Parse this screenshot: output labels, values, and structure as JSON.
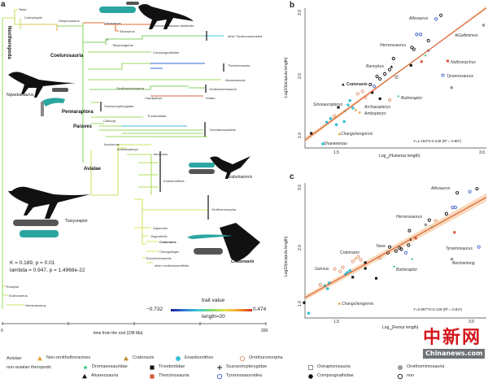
{
  "panel_a": {
    "letter": "a",
    "taxa": {
      "tawa": "Tawa",
      "coelophysis": "Coelophysis",
      "dilophosaurus": "Dilophosaurus",
      "limusaurus": "Limusaurus",
      "acrocanthosaurus": "Acrocanthosaurus atokensis",
      "allosaurus": "Allosaurus",
      "b_marker": "b",
      "tanycolagreus": "Tanycolagreus",
      "other_tyrannosauroidea": "other Tyrannosauroidea",
      "compsognathidae": "Compsognathidae",
      "therizinosauria": "Therizinosauria",
      "alvarezsauria": "Alvarezsauria",
      "ornithomimosauria_inner": "Ornithomimosauria",
      "ornithomimosauria": "Ornithomimosauria",
      "caudipteryx": "Caudipteryx",
      "khaan": "Khaan",
      "scansoriopterygidae": "Scansoriopterygidae",
      "troodontidae": "Troodontidae",
      "caihong": "Caihong",
      "dromaeosauridae": "Dromaeosauridae",
      "anchiornis": "Anchiornis",
      "archaeopteryx": "Archaeopteryx",
      "jeholornis": "Jeholornis",
      "enantiornithes": "Enantiornithes",
      "ornithuromorpha": "Ornithuromorpha",
      "sapeornis": "Sapeornis",
      "jinguofortis": "Jinguofortis",
      "cratonavis": "Cratonavis",
      "chongmingia": "Chongmingia",
      "eoconfuciusornis": "Eoconfuciusornis",
      "other_confuciusornithids": "other confuciusornithids",
      "eoraptor": "Eoraptor",
      "eodromaeus": "Eodromaeus",
      "herrerasaurus": "Herrerasaurus"
    },
    "clades": {
      "neotheropoda": "Neotheropoda",
      "coelurosauria": "Coelurosauria",
      "pennaraptora": "Pennaraptora",
      "paraves": "Paraves",
      "avialae": "Avialae"
    },
    "silhouette_labels": {
      "nqwebasaurus": "Nqwebasaurus",
      "tianyuraptor": "Tianyuraptor",
      "parabohaiornis": "parabohaiornis",
      "cratonavis": "Cratonavis"
    },
    "stats": {
      "line1": "K = 0.189, p = 0.01",
      "line2": "lambda = 0.947, p = 1.4968e-22"
    },
    "colorbar": {
      "title": "trait value",
      "min": "−0.732",
      "max": "0.474",
      "length": "length=20",
      "colors": [
        "#1a1a9c",
        "#2c7bd6",
        "#3cc8d8",
        "#7ed86a",
        "#e8e04c",
        "#f0a030",
        "#d8301c"
      ]
    },
    "time_axis": {
      "label": "time from the root (238 Ma)",
      "tick_start": "0",
      "tick_end": "200"
    }
  },
  "panel_b": {
    "letter": "b",
    "xlabel_main": "Log",
    "xlabel_sub": "10",
    "xlabel_rest": "(Humerus length)",
    "ylabel": "Log10(scapula length)",
    "xticks": [
      "1.5",
      "3.0"
    ],
    "yticks": [
      "1.0",
      "2.0",
      "3.0"
    ],
    "equation": "Y=1.194*X-0.449  (R² = 0.80*)",
    "regression": {
      "slope": 1.194,
      "intercept": -0.449
    },
    "labels": {
      "allosaurus": "Allosaurus",
      "gallimimus": "Gallimimus",
      "herrerasaurus": "Herrerasaurus",
      "nothronychus": "Nothronychus",
      "bannykus": "Bannykus",
      "tyrannosaurus": "Tyrannosaurus",
      "cratonavis": "Cratonavis",
      "sinosauropteryx": "Sinosauropteryx",
      "buitreraptor": "Buitreraptor",
      "archaeopteryx": "Archaeopteryx",
      "ambopteryx": "Ambopteryx",
      "changchengornis": "Changchengornis",
      "shanweiniao": "Shanweiniao"
    }
  },
  "panel_c": {
    "letter": "c",
    "xlabel_main": "Log",
    "xlabel_sub": "10",
    "xlabel_rest": "(Femur length)",
    "ylabel": "Log10(scapula length)",
    "xticks": [
      "1.5",
      "3.0"
    ],
    "yticks": [
      "1.0",
      "2.0",
      "3.0"
    ],
    "equation": "Y=0.857*X+0.129  (R² = 0.84*)",
    "regression": {
      "slope": 0.857,
      "intercept": 0.129
    },
    "labels": {
      "allosaurus": "Allosaurus",
      "herrerasaurus": "Herrerasaurus",
      "tawa": "Tawa",
      "tyrannosaurus": "Tyrannosaurus",
      "beishanlong": "Beishanlong",
      "cratonavis": "Cratonavis",
      "gansus": "Gansus",
      "buitreraptor": "Buitreraptor",
      "changchengornis": "Changchengornis"
    }
  },
  "scatter_b": [
    [
      2.51,
      2.89,
      "tyr"
    ],
    [
      2.56,
      2.95,
      "non"
    ],
    [
      3.0,
      2.79,
      "orn"
    ],
    [
      2.72,
      2.63,
      "orn"
    ],
    [
      2.31,
      2.64,
      "tyr"
    ],
    [
      2.35,
      2.64,
      "tyr"
    ],
    [
      2.43,
      2.54,
      "non"
    ],
    [
      2.26,
      2.43,
      "non"
    ],
    [
      2.28,
      2.4,
      "non"
    ],
    [
      2.07,
      2.25,
      "non"
    ],
    [
      2.63,
      2.21,
      "ther"
    ],
    [
      2.58,
      1.98,
      "tyr"
    ],
    [
      2.67,
      1.78,
      "orn"
    ],
    [
      2.05,
      2.12,
      "alv"
    ],
    [
      1.55,
      1.83,
      "alv"
    ],
    [
      1.83,
      1.83,
      "non"
    ],
    [
      1.9,
      1.96,
      "non"
    ],
    [
      1.93,
      1.92,
      "non"
    ],
    [
      1.98,
      2.0,
      "non"
    ],
    [
      2.03,
      2.07,
      "non"
    ],
    [
      2.1,
      1.95,
      "ovi"
    ],
    [
      1.87,
      1.8,
      "tyr"
    ],
    [
      2.12,
      1.64,
      "dro"
    ],
    [
      2.25,
      2.14,
      "troo"
    ],
    [
      2.43,
      2.38,
      "orn"
    ],
    [
      2.4,
      2.3,
      "dro"
    ],
    [
      2.36,
      2.2,
      "ther"
    ],
    [
      1.75,
      1.72,
      "ornu"
    ],
    [
      1.7,
      1.68,
      "ornu"
    ],
    [
      1.78,
      1.62,
      "ornu"
    ],
    [
      1.85,
      1.7,
      "troo"
    ],
    [
      1.93,
      1.6,
      "troo"
    ],
    [
      1.62,
      1.57,
      "enan"
    ],
    [
      1.6,
      1.5,
      "enan"
    ],
    [
      1.65,
      1.45,
      "enan"
    ],
    [
      1.57,
      1.4,
      "dro"
    ],
    [
      1.68,
      1.42,
      "nonav"
    ],
    [
      1.72,
      1.38,
      "nonav"
    ],
    [
      1.5,
      1.46,
      "troo"
    ],
    [
      1.46,
      1.32,
      "ornu"
    ],
    [
      1.42,
      1.28,
      "enan"
    ],
    [
      1.38,
      1.22,
      "enan"
    ],
    [
      1.48,
      1.18,
      "enan"
    ],
    [
      1.56,
      1.23,
      "enan"
    ],
    [
      1.51,
      1.03,
      "nonav"
    ],
    [
      1.34,
      0.87,
      "enan"
    ],
    [
      1.22,
      1.04,
      "troo"
    ],
    [
      2.03,
      1.58,
      "ornu"
    ]
  ],
  "scatter_c": [
    [
      2.82,
      2.9,
      "non"
    ],
    [
      2.96,
      2.92,
      "tyr"
    ],
    [
      3.04,
      2.97,
      "non"
    ],
    [
      2.77,
      2.65,
      "tyr"
    ],
    [
      2.8,
      2.65,
      "tyr"
    ],
    [
      2.7,
      2.54,
      "non"
    ],
    [
      2.51,
      2.43,
      "non"
    ],
    [
      2.29,
      2.25,
      "non"
    ],
    [
      3.06,
      1.97,
      "tyr"
    ],
    [
      2.76,
      1.76,
      "orn"
    ],
    [
      2.79,
      2.22,
      "ther"
    ],
    [
      2.07,
      1.97,
      "non"
    ],
    [
      2.05,
      1.87,
      "non"
    ],
    [
      2.14,
      1.9,
      "non"
    ],
    [
      2.18,
      1.95,
      "non"
    ],
    [
      2.2,
      1.93,
      "non"
    ],
    [
      2.28,
      2.0,
      "non"
    ],
    [
      2.25,
      1.87,
      "tyr"
    ],
    [
      2.12,
      1.63,
      "dro"
    ],
    [
      2.3,
      2.1,
      "alv"
    ],
    [
      2.36,
      2.12,
      "ther"
    ],
    [
      2.47,
      2.35,
      "orn"
    ],
    [
      2.58,
      2.42,
      "ornu"
    ],
    [
      2.54,
      2.31,
      "dro"
    ],
    [
      1.69,
      1.77,
      "nonav"
    ],
    [
      1.72,
      1.8,
      "ornu"
    ],
    [
      1.75,
      1.75,
      "ornu"
    ],
    [
      1.66,
      1.72,
      "ornu"
    ],
    [
      1.8,
      1.7,
      "troo"
    ],
    [
      1.46,
      1.59,
      "ornu"
    ],
    [
      1.6,
      1.53,
      "enan"
    ],
    [
      1.63,
      1.56,
      "enan"
    ],
    [
      1.58,
      1.5,
      "enan"
    ],
    [
      1.55,
      1.62,
      "ornu"
    ],
    [
      1.52,
      1.55,
      "ornu"
    ],
    [
      1.4,
      1.35,
      "enan"
    ],
    [
      1.35,
      1.3,
      "enan"
    ],
    [
      1.38,
      1.25,
      "enan"
    ],
    [
      1.3,
      1.32,
      "ornu"
    ],
    [
      1.92,
      1.43,
      "troo"
    ],
    [
      1.8,
      1.6,
      "troo"
    ],
    [
      1.66,
      1.45,
      "troo"
    ],
    [
      2.32,
      1.76,
      "dro"
    ],
    [
      1.51,
      1.0,
      "nonav"
    ],
    [
      1.17,
      0.83,
      "enan"
    ],
    [
      1.12,
      1.01,
      "troo"
    ],
    [
      1.96,
      1.78,
      "ornu"
    ]
  ],
  "legend": {
    "avialae_title": "Avialae:",
    "theropods_title": "non-avialan theropods:",
    "avialae": [
      {
        "key": "nonav",
        "label": "Non-ornithothoracines"
      },
      {
        "key": "crat",
        "label": "Cratonavis"
      },
      {
        "key": "enan",
        "label": "Enantiornithes"
      },
      {
        "key": "ornu",
        "label": "Ornithuromorpha"
      }
    ],
    "row2": [
      {
        "key": "dro",
        "label": "Dromaeosauridae"
      },
      {
        "key": "troo",
        "label": "Troodontidae"
      },
      {
        "key": "scan",
        "label": "Scansoriopterygidae"
      },
      {
        "key": "ovi",
        "label": "Oviraptorosauria"
      },
      {
        "key": "orn",
        "label": "Ornithomimosauria"
      }
    ],
    "row3": [
      {
        "key": "alv",
        "label": "Alvarezsauria"
      },
      {
        "key": "ther",
        "label": "Therizinosauria"
      },
      {
        "key": "tyr",
        "label": "Tyrannosauroidea"
      },
      {
        "key": "comp",
        "label": "Compsognathidae"
      },
      {
        "key": "non",
        "label": "non"
      }
    ]
  },
  "marker_colors": {
    "nonav": "#e8a23c",
    "crat": "#c08a30",
    "enan": "#36c2d6",
    "ornu": "#e0906c",
    "dro": "#3cc87a",
    "troo": "#111111",
    "scan": "#111111",
    "ovi": "#777777",
    "orn": "#999999",
    "alv": "#111111",
    "ther": "#d9543c",
    "tyr": "#3c64c8",
    "comp": "#111111",
    "non": "#111111"
  },
  "watermark": {
    "chinese": "中新网",
    "latin": "Chinanews.com"
  }
}
